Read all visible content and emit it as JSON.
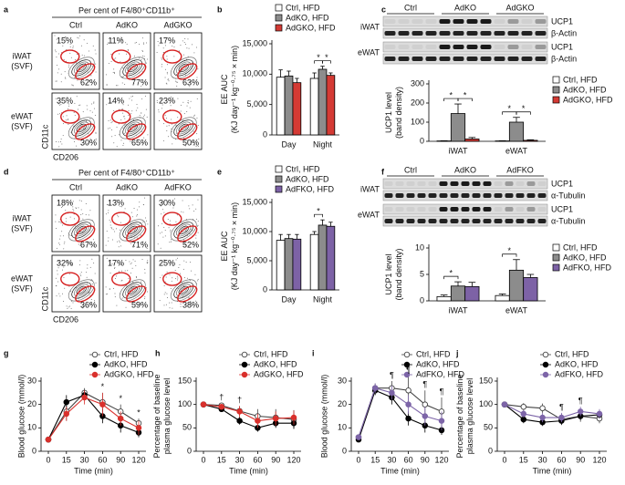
{
  "flow_panels": [
    {
      "panel_label": "a",
      "header": "Per cent of F4/80⁺CD11b⁺",
      "columns": [
        "Ctrl",
        "AdKO",
        "AdGKO"
      ],
      "rows": [
        [
          "iWAT",
          "(SVF)"
        ],
        [
          "eWAT",
          "(SVF)"
        ]
      ],
      "percentages": [
        [
          [
            "15%",
            "62%"
          ],
          [
            "11%",
            "77%"
          ],
          [
            "17%",
            "63%"
          ]
        ],
        [
          [
            "35%",
            "30%"
          ],
          [
            "14%",
            "65%"
          ],
          [
            "23%",
            "50%"
          ]
        ]
      ],
      "y_axis": "CD11c",
      "x_axis": "CD206"
    },
    {
      "panel_label": "d",
      "header": "Per cent of F4/80⁺CD11b⁺",
      "columns": [
        "Ctrl",
        "AdKO",
        "AdFKO"
      ],
      "rows": [
        [
          "iWAT",
          "(SVF)"
        ],
        [
          "eWAT",
          "(SVF)"
        ]
      ],
      "percentages": [
        [
          [
            "18%",
            "67%"
          ],
          [
            "13%",
            "71%"
          ],
          [
            "30%",
            "52%"
          ]
        ],
        [
          [
            "32%",
            "36%"
          ],
          [
            "17%",
            "59%"
          ],
          [
            "25%",
            "38%"
          ]
        ]
      ],
      "y_axis": "CD11c",
      "x_axis": "CD206"
    }
  ],
  "blots": [
    {
      "columns": [
        "Ctrl",
        "AdKO",
        "AdGKO"
      ],
      "rows": [
        {
          "tissue": "iWAT",
          "bands": [
            "UCP1",
            "β-Actin"
          ]
        },
        {
          "tissue": "eWAT",
          "bands": [
            "UCP1",
            "β-Actin"
          ]
        }
      ]
    },
    {
      "columns": [
        "Ctrl",
        "AdKO",
        "AdFKO"
      ],
      "rows": [
        {
          "tissue": "iWAT",
          "bands": [
            "UCP1",
            "α-Tubulin"
          ]
        },
        {
          "tissue": "eWAT",
          "bands": [
            "UCP1",
            "α-Tubulin"
          ]
        }
      ]
    }
  ],
  "chart_data": [
    {
      "type": "bar",
      "panel_label": "b",
      "ylabel": [
        "EE AUC",
        "(KJ day⁻¹ kg⁻⁰·⁷⁵ × min)"
      ],
      "categories": [
        "Day",
        "Night"
      ],
      "series": [
        {
          "name": "Ctrl, HFD",
          "color": "#ffffff",
          "values": [
            9500,
            9300
          ],
          "errors": [
            1200,
            900
          ]
        },
        {
          "name": "AdKO, HFD",
          "color": "#8c8c8c",
          "values": [
            9700,
            10800
          ],
          "errors": [
            800,
            500
          ]
        },
        {
          "name": "AdGKO, HFD",
          "color": "#d43a34",
          "values": [
            8600,
            9800
          ],
          "errors": [
            700,
            400
          ]
        }
      ],
      "ylim": [
        0,
        15000
      ],
      "yticks": [
        0,
        {
          "value": 5000,
          "label": "5,000"
        },
        {
          "value": 10000,
          "label": "10,000"
        },
        {
          "value": 15000,
          "label": "15,000"
        }
      ],
      "annotations": [
        {
          "label": "*",
          "category": "Night",
          "between": [
            0,
            1
          ]
        },
        {
          "label": "*",
          "category": "Night",
          "between": [
            1,
            2
          ]
        }
      ]
    },
    {
      "type": "bar",
      "panel_label": "c",
      "ylabel": [
        "UCP1 level",
        "(band density)"
      ],
      "categories": [
        "iWAT",
        "eWAT"
      ],
      "series": [
        {
          "name": "Ctrl, HFD",
          "color": "#ffffff",
          "values": [
            2,
            2
          ],
          "errors": [
            1,
            1
          ]
        },
        {
          "name": "AdKO, HFD",
          "color": "#8c8c8c",
          "values": [
            145,
            100
          ],
          "errors": [
            50,
            25
          ]
        },
        {
          "name": "AdGKO, HFD",
          "color": "#d43a34",
          "values": [
            12,
            5
          ],
          "errors": [
            8,
            3
          ]
        }
      ],
      "ylim": [
        0,
        300
      ],
      "yticks": [
        0,
        100,
        200,
        300
      ],
      "annotations": [
        {
          "label": "*",
          "category": "iWAT",
          "between": [
            0,
            1
          ]
        },
        {
          "label": "*",
          "category": "iWAT",
          "between": [
            1,
            2
          ]
        },
        {
          "label": "*",
          "category": "eWAT",
          "between": [
            0,
            1
          ]
        },
        {
          "label": "*",
          "category": "eWAT",
          "between": [
            1,
            2
          ]
        }
      ]
    },
    {
      "type": "bar",
      "panel_label": "e",
      "ylabel": [
        "EE AUC",
        "(KJ day⁻¹ kg⁻⁰·⁷⁵ × min)"
      ],
      "categories": [
        "Day",
        "Night"
      ],
      "series": [
        {
          "name": "Ctrl, HFD",
          "color": "#ffffff",
          "values": [
            8500,
            9500
          ],
          "errors": [
            1000,
            500
          ]
        },
        {
          "name": "AdKO, HFD",
          "color": "#8c8c8c",
          "values": [
            8800,
            11100
          ],
          "errors": [
            700,
            900
          ]
        },
        {
          "name": "AdFKO, HFD",
          "color": "#7d62a6",
          "values": [
            8700,
            10900
          ],
          "errors": [
            800,
            700
          ]
        }
      ],
      "ylim": [
        0,
        15000
      ],
      "yticks": [
        0,
        {
          "value": 5000,
          "label": "5,000"
        },
        {
          "value": 10000,
          "label": "10,000"
        },
        {
          "value": 15000,
          "label": "15,000"
        }
      ],
      "annotations": [
        {
          "label": "*",
          "category": "Night",
          "between": [
            0,
            1
          ]
        }
      ]
    },
    {
      "type": "bar",
      "panel_label": "f",
      "ylabel": [
        "UCP1 level",
        "(band density)"
      ],
      "categories": [
        "iWAT",
        "eWAT"
      ],
      "series": [
        {
          "name": "Ctrl, HFD",
          "color": "#ffffff",
          "values": [
            0.8,
            1.0
          ],
          "errors": [
            0.3,
            0.3
          ]
        },
        {
          "name": "AdKO, HFD",
          "color": "#8c8c8c",
          "values": [
            2.8,
            5.8
          ],
          "errors": [
            0.8,
            2.0
          ]
        },
        {
          "name": "AdFKO, HFD",
          "color": "#7d62a6",
          "values": [
            2.7,
            4.4
          ],
          "errors": [
            0.8,
            0.6
          ]
        }
      ],
      "ylim": [
        0,
        10
      ],
      "yticks": [
        0,
        5,
        10
      ],
      "annotations": [
        {
          "label": "*",
          "category": "iWAT",
          "between": [
            0,
            1
          ]
        },
        {
          "label": "*",
          "category": "eWAT",
          "between": [
            0,
            1
          ]
        }
      ]
    },
    {
      "type": "line",
      "panel_label": "g",
      "ylabel": [
        "Blood glucose (mmol/l)"
      ],
      "xlabel": "Time (min)",
      "categories": [
        "0",
        "15",
        "30",
        "60",
        "90",
        "120"
      ],
      "series": [
        {
          "name": "Ctrl, HFD",
          "color": "#444444",
          "marker_fill": "#ffffff",
          "values": [
            5,
            17,
            25,
            21,
            17,
            12
          ],
          "errors": [
            1,
            4,
            2,
            4,
            3,
            2
          ]
        },
        {
          "name": "AdKO, HFD",
          "color": "#000000",
          "marker_fill": "#000000",
          "values": [
            5,
            21,
            24,
            15,
            11,
            8
          ],
          "errors": [
            1,
            3,
            2,
            3,
            3,
            2
          ]
        },
        {
          "name": "AdGKO, HFD",
          "color": "#d9302c",
          "marker_fill": "#d9302c",
          "values": [
            5,
            16,
            23,
            20,
            14,
            10
          ],
          "errors": [
            1,
            3,
            3,
            5,
            3,
            3
          ]
        }
      ],
      "ylim": [
        0,
        30
      ],
      "yticks": [
        0,
        10,
        20,
        30
      ],
      "annotations": [
        {
          "label": "*",
          "category": "60"
        },
        {
          "label": "*",
          "category": "90"
        },
        {
          "label": "*",
          "category": "120"
        }
      ]
    },
    {
      "type": "line",
      "panel_label": "h",
      "ylabel": [
        "Percentage of baseline",
        "plasma glucose level"
      ],
      "xlabel": "Time (min)",
      "categories": [
        "0",
        "15",
        "30",
        "60",
        "90",
        "120"
      ],
      "series": [
        {
          "name": "Ctrl, HFD",
          "color": "#444444",
          "marker_fill": "#ffffff",
          "values": [
            100,
            98,
            86,
            75,
            72,
            68
          ],
          "errors": [
            2,
            5,
            10,
            15,
            18,
            20
          ]
        },
        {
          "name": "AdKO, HFD",
          "color": "#000000",
          "marker_fill": "#000000",
          "values": [
            100,
            90,
            65,
            50,
            60,
            60
          ],
          "errors": [
            2,
            6,
            8,
            8,
            10,
            12
          ]
        },
        {
          "name": "AdGKO, HFD",
          "color": "#d9302c",
          "marker_fill": "#d9302c",
          "values": [
            100,
            95,
            85,
            65,
            70,
            72
          ],
          "errors": [
            2,
            4,
            12,
            15,
            15,
            15
          ]
        }
      ],
      "ylim": [
        0,
        150
      ],
      "yticks": [
        0,
        50,
        100,
        150
      ],
      "annotations": [
        {
          "label": "†",
          "category": "15"
        },
        {
          "label": "†",
          "category": "30"
        }
      ]
    },
    {
      "type": "line",
      "panel_label": "i",
      "ylabel": [
        "Blood glucose (mmol/l)"
      ],
      "xlabel": "Time (min)",
      "categories": [
        "0",
        "15",
        "30",
        "60",
        "90",
        "120"
      ],
      "series": [
        {
          "name": "Ctrl, HFD",
          "color": "#444444",
          "marker_fill": "#ffffff",
          "values": [
            6,
            27,
            27,
            26,
            20,
            17
          ],
          "errors": [
            1,
            2,
            3,
            6,
            6,
            6
          ]
        },
        {
          "name": "AdKO, HFD",
          "color": "#000000",
          "marker_fill": "#000000",
          "values": [
            5,
            26,
            23,
            14,
            11,
            9
          ],
          "errors": [
            1,
            2,
            3,
            3,
            3,
            2
          ]
        },
        {
          "name": "AdFKO, HFD",
          "color": "#7d65a8",
          "marker_fill": "#7d65a8",
          "values": [
            6,
            27,
            25,
            20,
            15,
            13
          ],
          "errors": [
            1,
            2,
            3,
            4,
            4,
            4
          ]
        }
      ],
      "ylim": [
        0,
        30
      ],
      "yticks": [
        0,
        10,
        20,
        30
      ],
      "annotations": [
        {
          "label": "¶",
          "category": "30"
        },
        {
          "label": "¶",
          "category": "60"
        },
        {
          "label": "¶",
          "category": "90"
        },
        {
          "label": "¶",
          "category": "120"
        }
      ]
    },
    {
      "type": "line",
      "panel_label": "j",
      "ylabel": [
        "Percentage of baseline",
        "plasma glucose level"
      ],
      "xlabel": "Time (min)",
      "categories": [
        "0",
        "15",
        "30",
        "60",
        "90",
        "120"
      ],
      "series": [
        {
          "name": "Ctrl, HFD",
          "color": "#444444",
          "marker_fill": "#ffffff",
          "values": [
            100,
            95,
            92,
            68,
            75,
            70
          ],
          "errors": [
            2,
            8,
            10,
            12,
            12,
            10
          ]
        },
        {
          "name": "AdKO, HFD",
          "color": "#000000",
          "marker_fill": "#000000",
          "values": [
            100,
            68,
            62,
            65,
            75,
            78
          ],
          "errors": [
            2,
            8,
            8,
            8,
            8,
            8
          ]
        },
        {
          "name": "AdFKO, HFD",
          "color": "#7d65a8",
          "marker_fill": "#7d65a8",
          "values": [
            100,
            80,
            72,
            72,
            85,
            80
          ],
          "errors": [
            2,
            8,
            10,
            10,
            10,
            10
          ]
        }
      ],
      "ylim": [
        0,
        150
      ],
      "yticks": [
        0,
        50,
        100,
        150
      ],
      "annotations": [
        {
          "label": "¶",
          "category": "60"
        },
        {
          "label": "¶",
          "category": "90"
        }
      ]
    }
  ]
}
